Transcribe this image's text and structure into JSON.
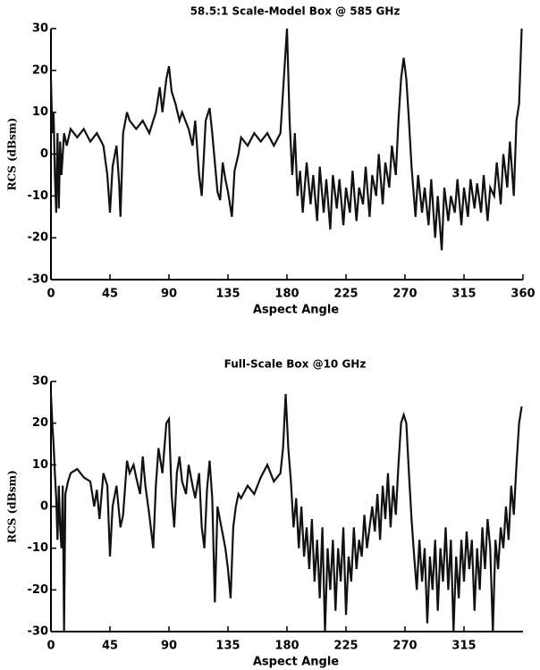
{
  "chart_data": [
    {
      "type": "line",
      "title": "58.5:1 Scale-Model Box  @ 585 GHz",
      "xlabel": "Aspect Angle",
      "ylabel": "RCS (dBsm)",
      "color": "#111111",
      "x": [
        0,
        1,
        2,
        3,
        4,
        5,
        6,
        7,
        8,
        10,
        12,
        15,
        20,
        25,
        30,
        35,
        40,
        43,
        45,
        47,
        50,
        52,
        53,
        55,
        58,
        60,
        65,
        70,
        75,
        80,
        83,
        85,
        88,
        90,
        92,
        95,
        98,
        100,
        105,
        108,
        110,
        113,
        115,
        118,
        121,
        123,
        125,
        127,
        129,
        131,
        133,
        135,
        138,
        140,
        143,
        145,
        150,
        155,
        160,
        165,
        170,
        175,
        178,
        180,
        182,
        184,
        186,
        188,
        190,
        192,
        195,
        198,
        200,
        203,
        205,
        208,
        210,
        213,
        215,
        218,
        220,
        223,
        225,
        228,
        230,
        233,
        235,
        238,
        240,
        243,
        245,
        248,
        250,
        253,
        255,
        258,
        260,
        263,
        265,
        267,
        269,
        271,
        273,
        275,
        278,
        280,
        283,
        285,
        288,
        290,
        293,
        295,
        298,
        300,
        303,
        305,
        308,
        310,
        313,
        315,
        318,
        320,
        323,
        325,
        328,
        330,
        333,
        335,
        338,
        340,
        343,
        345,
        348,
        350,
        353,
        355,
        357,
        359
      ],
      "values": [
        18,
        5,
        10,
        -5,
        -14,
        5,
        -13,
        3,
        -5,
        5,
        2,
        6,
        4,
        6,
        3,
        5,
        2,
        -5,
        -14,
        -3,
        2,
        -7,
        -15,
        5,
        10,
        8,
        6,
        8,
        5,
        10,
        16,
        10,
        18,
        21,
        15,
        12,
        8,
        10,
        6,
        2,
        8,
        -5,
        -10,
        8,
        11,
        5,
        -2,
        -9,
        -11,
        -2,
        -6,
        -9,
        -15,
        -4,
        0,
        4,
        2,
        5,
        3,
        5,
        2,
        5,
        20,
        30,
        8,
        -5,
        5,
        -10,
        -4,
        -14,
        -2,
        -12,
        -5,
        -16,
        -3,
        -14,
        -6,
        -18,
        -5,
        -13,
        -6,
        -17,
        -8,
        -14,
        -4,
        -16,
        -8,
        -12,
        -3,
        -15,
        -5,
        -10,
        0,
        -12,
        -2,
        -8,
        2,
        -5,
        8,
        18,
        23,
        18,
        8,
        -3,
        -15,
        -5,
        -14,
        -8,
        -17,
        -6,
        -20,
        -10,
        -23,
        -8,
        -16,
        -10,
        -14,
        -6,
        -17,
        -8,
        -15,
        -6,
        -13,
        -7,
        -14,
        -5,
        -16,
        -8,
        -10,
        -2,
        -12,
        0,
        -8,
        3,
        -10,
        8,
        12,
        30
      ],
      "xlim": [
        0,
        360
      ],
      "ylim": [
        -30,
        30
      ],
      "xticks": [
        0,
        45,
        90,
        135,
        180,
        225,
        270,
        315,
        360
      ],
      "yticks": [
        -30,
        -20,
        -10,
        0,
        10,
        20,
        30
      ]
    },
    {
      "type": "line",
      "title": "Full-Scale Box @10 GHz",
      "xlabel": "Aspect Angle",
      "ylabel": "RCS (dBsm)",
      "color": "#111111",
      "x": [
        0,
        1,
        2,
        3,
        4,
        5,
        6,
        7,
        8,
        9,
        10,
        11,
        13,
        15,
        20,
        25,
        30,
        33,
        35,
        37,
        40,
        43,
        45,
        47,
        50,
        53,
        55,
        58,
        60,
        63,
        65,
        68,
        70,
        72,
        75,
        78,
        80,
        82,
        85,
        88,
        90,
        92,
        94,
        96,
        98,
        100,
        103,
        105,
        108,
        110,
        113,
        115,
        117,
        119,
        121,
        123,
        125,
        127,
        130,
        133,
        135,
        137,
        139,
        141,
        143,
        145,
        150,
        155,
        160,
        165,
        170,
        175,
        177,
        179,
        181,
        183,
        185,
        187,
        189,
        191,
        193,
        195,
        197,
        199,
        201,
        203,
        205,
        207,
        209,
        211,
        213,
        215,
        217,
        219,
        221,
        223,
        225,
        227,
        229,
        231,
        233,
        235,
        237,
        239,
        241,
        243,
        245,
        247,
        249,
        251,
        253,
        255,
        257,
        259,
        261,
        263,
        265,
        267,
        269,
        271,
        273,
        275,
        277,
        279,
        281,
        283,
        285,
        287,
        289,
        291,
        293,
        295,
        297,
        299,
        301,
        303,
        305,
        307,
        309,
        311,
        313,
        315,
        317,
        319,
        321,
        323,
        325,
        327,
        329,
        331,
        333,
        335,
        337,
        339,
        341,
        343,
        345,
        347,
        349,
        351,
        353,
        355,
        357,
        359
      ],
      "values": [
        27,
        20,
        15,
        8,
        2,
        -8,
        5,
        -5,
        -10,
        5,
        -30,
        3,
        6,
        8,
        9,
        7,
        6,
        0,
        4,
        -3,
        8,
        5,
        -12,
        0,
        5,
        -5,
        -2,
        11,
        8,
        10,
        7,
        3,
        12,
        5,
        -2,
        -10,
        5,
        14,
        8,
        20,
        21,
        3,
        -5,
        8,
        12,
        6,
        3,
        10,
        5,
        2,
        8,
        -5,
        -10,
        4,
        11,
        2,
        -23,
        0,
        -5,
        -10,
        -15,
        -22,
        -5,
        0,
        3,
        2,
        5,
        3,
        7,
        10,
        6,
        8,
        14,
        27,
        14,
        6,
        -5,
        2,
        -10,
        0,
        -12,
        -5,
        -15,
        -3,
        -18,
        -8,
        -22,
        -5,
        -30,
        -10,
        -20,
        -8,
        -25,
        -10,
        -18,
        -5,
        -26,
        -12,
        -18,
        -5,
        -15,
        -8,
        -12,
        -2,
        -10,
        -5,
        0,
        -6,
        3,
        -8,
        5,
        -3,
        8,
        -5,
        5,
        -2,
        10,
        20,
        22,
        20,
        8,
        -3,
        -12,
        -20,
        -8,
        -18,
        -10,
        -28,
        -12,
        -20,
        -8,
        -25,
        -10,
        -18,
        -5,
        -20,
        -8,
        -30,
        -12,
        -22,
        -8,
        -18,
        -6,
        -15,
        -8,
        -25,
        -10,
        -20,
        -5,
        -15,
        -3,
        -10,
        -30,
        -8,
        -15,
        -5,
        -10,
        0,
        -8,
        5,
        -2,
        10,
        20,
        24
      ],
      "xlim": [
        0,
        360
      ],
      "ylim": [
        -30,
        30
      ],
      "xticks": [
        0,
        45,
        90,
        135,
        180,
        225,
        270,
        315
      ],
      "yticks": [
        -30,
        -20,
        -10,
        0,
        10,
        20,
        30
      ]
    }
  ]
}
